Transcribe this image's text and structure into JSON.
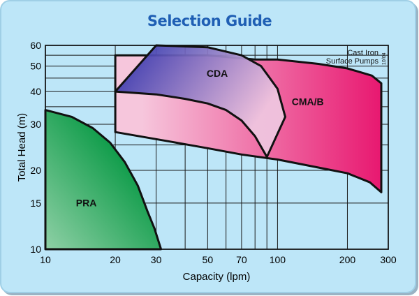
{
  "chart_data": {
    "type": "area",
    "title": "Selection Guide",
    "xlabel": "Capacity  (lpm)",
    "ylabel": "Total Head  (m)",
    "x_scale": "log",
    "y_scale": "log",
    "xlim": [
      10,
      300
    ],
    "ylim": [
      10,
      60
    ],
    "grid": true,
    "x_gridlines": [
      10,
      20,
      30,
      40,
      50,
      60,
      70,
      80,
      90,
      100,
      200,
      300
    ],
    "y_gridlines": [
      10,
      15,
      20,
      25,
      30,
      35,
      40,
      45,
      50,
      55,
      60
    ],
    "x_tick_labels": [
      "10",
      "20",
      "30",
      "50",
      "70",
      "100",
      "200",
      "300"
    ],
    "y_tick_labels": [
      "10",
      "15",
      "20",
      "30",
      "40",
      "50",
      "60"
    ],
    "annotation": "Cast Iron\nSurface Pumps",
    "date_code": "10/04",
    "series": [
      {
        "name": "PRA",
        "color_start": "#8fd0a6",
        "color_end": "#0a9a46",
        "polygon": [
          [
            10,
            10
          ],
          [
            10,
            34
          ],
          [
            13,
            32
          ],
          [
            16,
            29
          ],
          [
            19,
            25.5
          ],
          [
            22,
            21.5
          ],
          [
            25,
            17.5
          ],
          [
            27.5,
            14
          ],
          [
            29.5,
            12
          ],
          [
            31.5,
            10
          ]
        ]
      },
      {
        "name": "CMA/B",
        "color_start": "#f6c6dc",
        "color_end": "#e81870",
        "polygon": [
          [
            20,
            55
          ],
          [
            50,
            55
          ],
          [
            80,
            53
          ],
          [
            100,
            53
          ],
          [
            150,
            51
          ],
          [
            200,
            49
          ],
          [
            255,
            46
          ],
          [
            280,
            43
          ],
          [
            280,
            16.5
          ],
          [
            250,
            18
          ],
          [
            200,
            19.5
          ],
          [
            150,
            20.5
          ],
          [
            100,
            22
          ],
          [
            70,
            23
          ],
          [
            50,
            24.3
          ],
          [
            35,
            25.7
          ],
          [
            20,
            28
          ]
        ]
      },
      {
        "name": "CDA",
        "color_start": "#2c2eaa",
        "color_end": "#efc7e0",
        "polygon": [
          [
            20,
            40
          ],
          [
            30,
            60
          ],
          [
            50,
            59
          ],
          [
            70,
            55
          ],
          [
            85,
            50
          ],
          [
            100,
            41
          ],
          [
            108,
            32
          ],
          [
            90,
            22.5
          ],
          [
            80,
            27
          ],
          [
            70,
            31
          ],
          [
            60,
            34
          ],
          [
            50,
            36
          ],
          [
            40,
            37.5
          ],
          [
            30,
            39
          ],
          [
            20,
            40
          ]
        ]
      }
    ]
  }
}
